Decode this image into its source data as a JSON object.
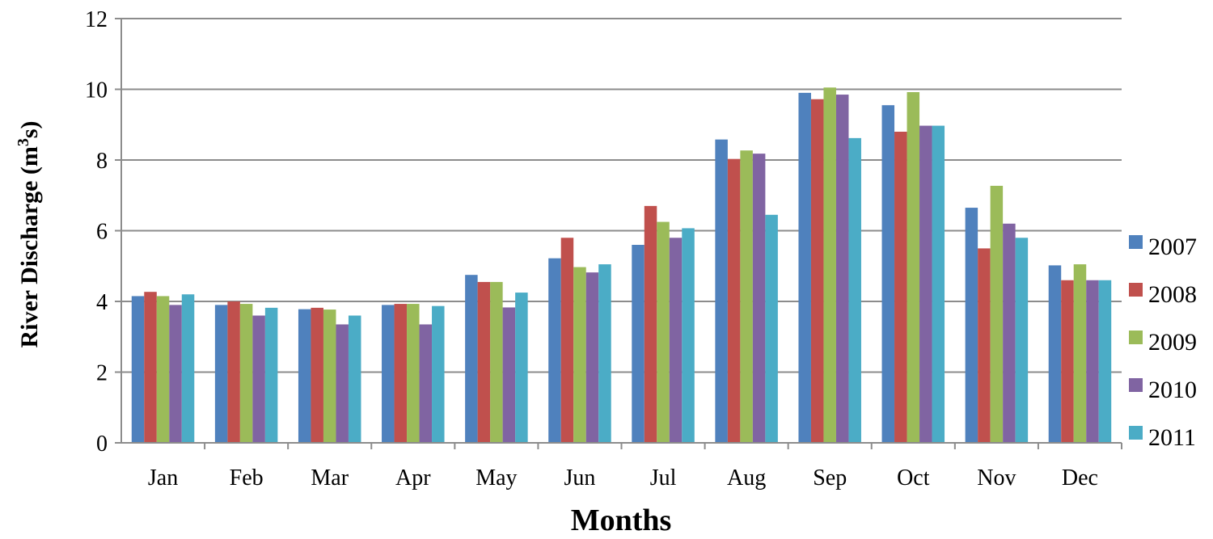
{
  "chart_data": {
    "type": "bar",
    "title": "",
    "xlabel": "Months",
    "ylabel_main": "River Discharge (m",
    "ylabel_sup": "3",
    "ylabel_end": "s)",
    "ylim": [
      0,
      12
    ],
    "yticks": [
      "0",
      "2",
      "4",
      "6",
      "8",
      "10",
      "12"
    ],
    "grid": true,
    "legend_position": "right",
    "categories": [
      "Jan",
      "Feb",
      "Mar",
      "Apr",
      "May",
      "Jun",
      "Jul",
      "Aug",
      "Sep",
      "Oct",
      "Nov",
      "Dec"
    ],
    "series": [
      {
        "name": "2007",
        "color": "#4F81BD",
        "values": [
          4.15,
          3.9,
          3.78,
          3.9,
          4.75,
          5.22,
          5.6,
          8.58,
          9.9,
          9.55,
          6.65,
          5.02
        ]
      },
      {
        "name": "2008",
        "color": "#C0504D",
        "values": [
          4.27,
          4.0,
          3.82,
          3.93,
          4.55,
          5.8,
          6.7,
          8.03,
          9.72,
          8.8,
          5.5,
          4.6
        ]
      },
      {
        "name": "2009",
        "color": "#9BBB59",
        "values": [
          4.15,
          3.93,
          3.77,
          3.93,
          4.55,
          4.97,
          6.25,
          8.27,
          10.05,
          9.92,
          7.27,
          5.05
        ]
      },
      {
        "name": "2010",
        "color": "#8064A2",
        "values": [
          3.9,
          3.6,
          3.35,
          3.35,
          3.83,
          4.82,
          5.8,
          8.18,
          9.85,
          8.97,
          6.2,
          4.6
        ]
      },
      {
        "name": "2011",
        "color": "#4BACC6",
        "values": [
          4.2,
          3.82,
          3.6,
          3.87,
          4.25,
          5.05,
          6.07,
          6.45,
          8.62,
          8.97,
          5.8,
          4.6
        ]
      }
    ]
  }
}
